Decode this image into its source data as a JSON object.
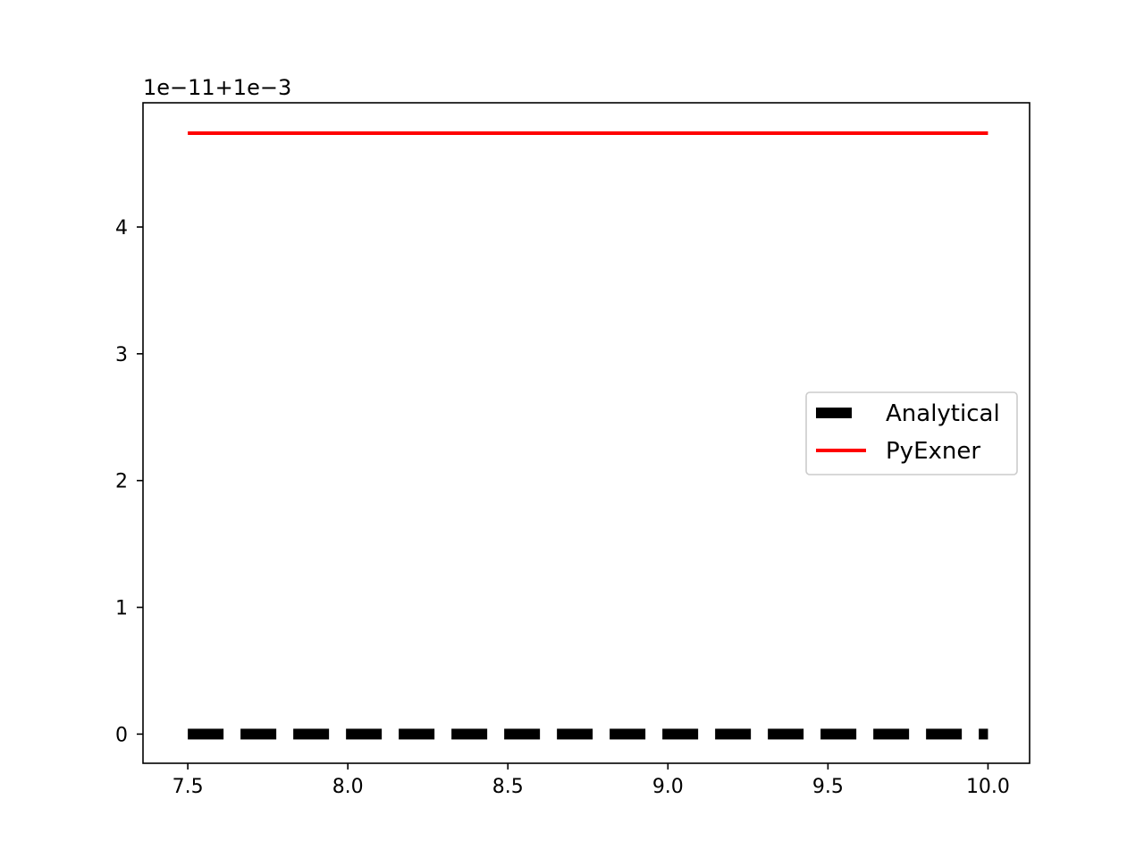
{
  "chart_data": {
    "type": "line",
    "title": "",
    "xlabel": "",
    "ylabel": "",
    "y_offset_label": "1e−11+1e−3",
    "xlim": [
      7.36,
      10.13
    ],
    "ylim": [
      -0.23,
      4.98
    ],
    "x_ticks": [
      {
        "value": 7.5,
        "label": "7.5"
      },
      {
        "value": 8.0,
        "label": "8.0"
      },
      {
        "value": 8.5,
        "label": "8.5"
      },
      {
        "value": 9.0,
        "label": "9.0"
      },
      {
        "value": 9.5,
        "label": "9.5"
      },
      {
        "value": 10.0,
        "label": "10.0"
      }
    ],
    "y_ticks": [
      {
        "value": 0,
        "label": "0"
      },
      {
        "value": 1,
        "label": "1"
      },
      {
        "value": 2,
        "label": "2"
      },
      {
        "value": 3,
        "label": "3"
      },
      {
        "value": 4,
        "label": "4"
      }
    ],
    "grid": false,
    "legend_position": "center-right",
    "series": [
      {
        "name": "Analytical",
        "color": "#000000",
        "style": "dashed",
        "x": [
          7.5,
          10.0
        ],
        "y": [
          0.0,
          0.0
        ]
      },
      {
        "name": "PyExner",
        "color": "#ff0000",
        "style": "solid",
        "x": [
          7.5,
          10.0
        ],
        "y": [
          4.74,
          4.74
        ]
      }
    ]
  }
}
